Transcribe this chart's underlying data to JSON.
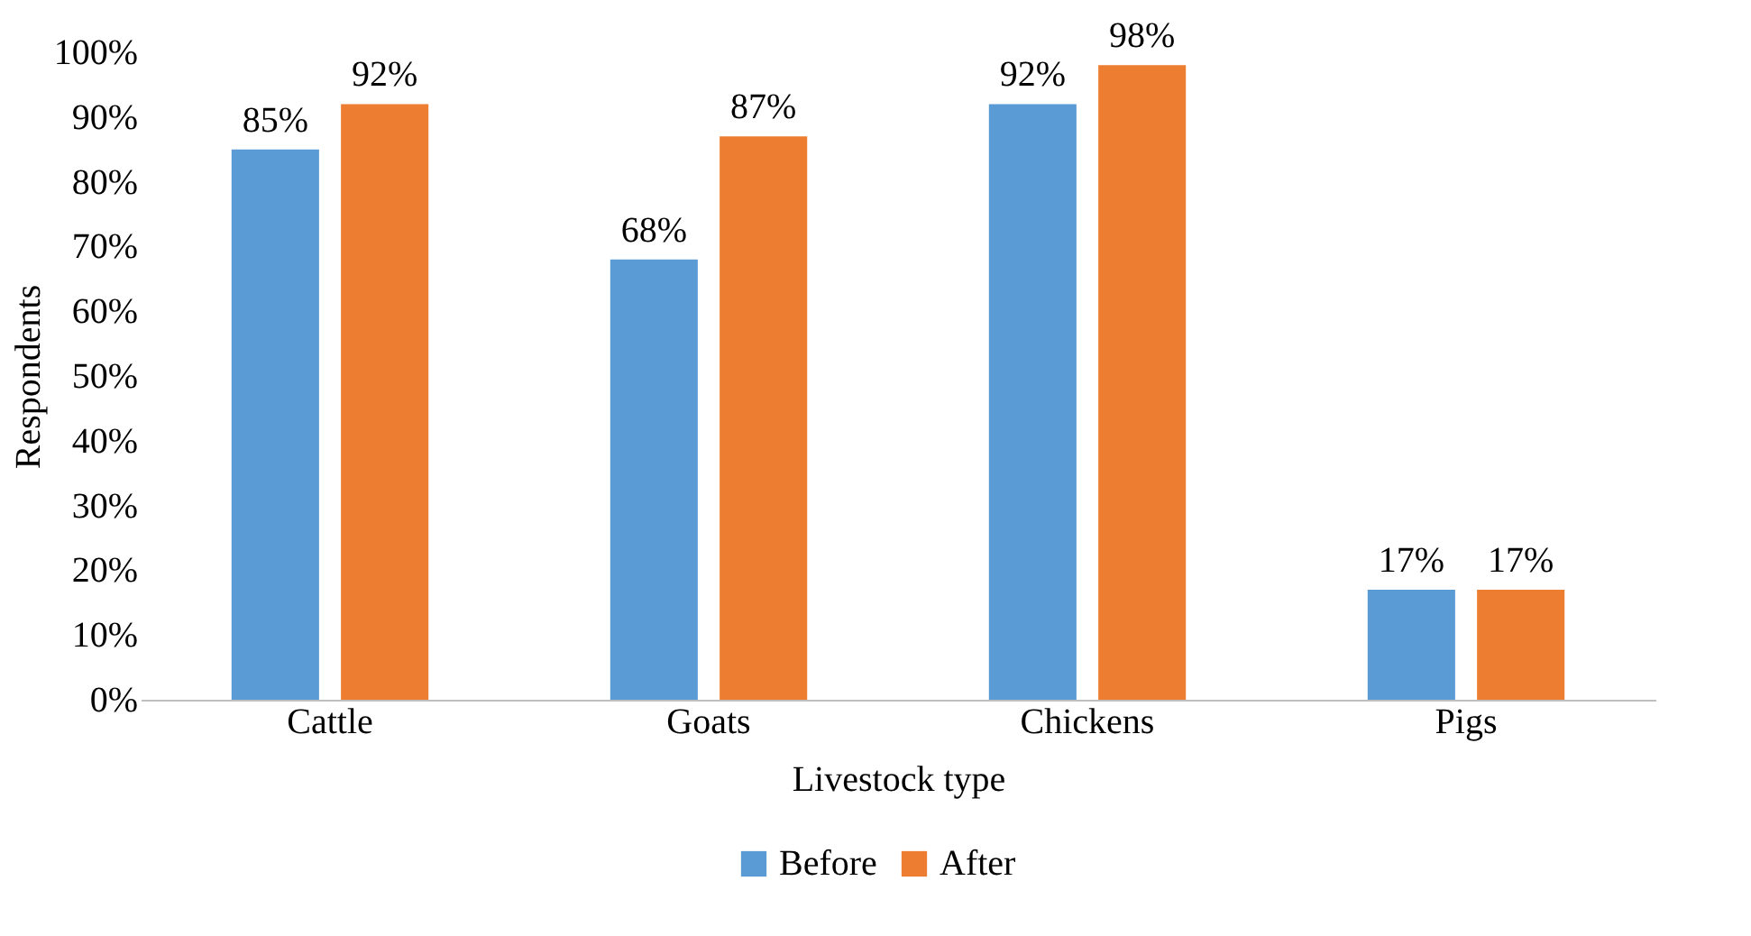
{
  "chart_data": {
    "type": "bar",
    "xlabel": "Livestock type",
    "ylabel": "Respondents",
    "categories": [
      "Cattle",
      "Goats",
      "Chickens",
      "Pigs"
    ],
    "series": [
      {
        "name": "Before",
        "color": "#5b9bd5",
        "values": [
          85,
          68,
          92,
          17
        ],
        "value_labels": [
          "85%",
          "68%",
          "92%",
          "17%"
        ]
      },
      {
        "name": "After",
        "color": "#ed7d31",
        "values": [
          92,
          87,
          98,
          17
        ],
        "value_labels": [
          "92%",
          "87%",
          "98%",
          "17%"
        ]
      }
    ],
    "ylim": [
      0,
      100
    ],
    "yticks": [
      {
        "value": 0,
        "label": "0%"
      },
      {
        "value": 10,
        "label": "10%"
      },
      {
        "value": 20,
        "label": "20%"
      },
      {
        "value": 30,
        "label": "30%"
      },
      {
        "value": 40,
        "label": "40%"
      },
      {
        "value": 50,
        "label": "50%"
      },
      {
        "value": 60,
        "label": "60%"
      },
      {
        "value": 70,
        "label": "70%"
      },
      {
        "value": 80,
        "label": "80%"
      },
      {
        "value": 90,
        "label": "90%"
      },
      {
        "value": 100,
        "label": "100%"
      }
    ],
    "grid": false,
    "legend": "bottom"
  }
}
